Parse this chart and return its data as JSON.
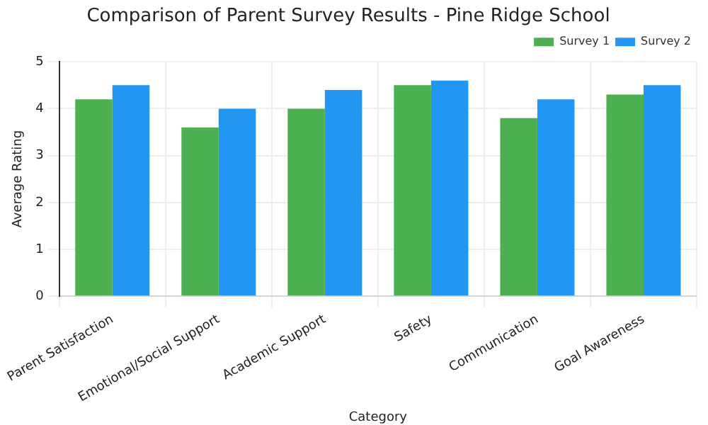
{
  "chart_data": {
    "type": "bar",
    "title": "Comparison of Parent Survey Results - Pine Ridge School",
    "xlabel": "Category",
    "ylabel": "Average Rating",
    "categories": [
      "Parent Satisfaction",
      "Emotional/Social Support",
      "Academic Support",
      "Safety",
      "Communication",
      "Goal Awareness"
    ],
    "series": [
      {
        "name": "Survey 1",
        "color": "#4caf50",
        "values": [
          4.2,
          3.6,
          4.0,
          4.5,
          3.8,
          4.3
        ]
      },
      {
        "name": "Survey 2",
        "color": "#2196f3",
        "values": [
          4.5,
          4.0,
          4.4,
          4.6,
          4.2,
          4.5
        ]
      }
    ],
    "ylim": [
      0,
      5
    ],
    "yticks": [
      0,
      1,
      2,
      3,
      4,
      5
    ],
    "grid": true,
    "legend": "top right"
  }
}
